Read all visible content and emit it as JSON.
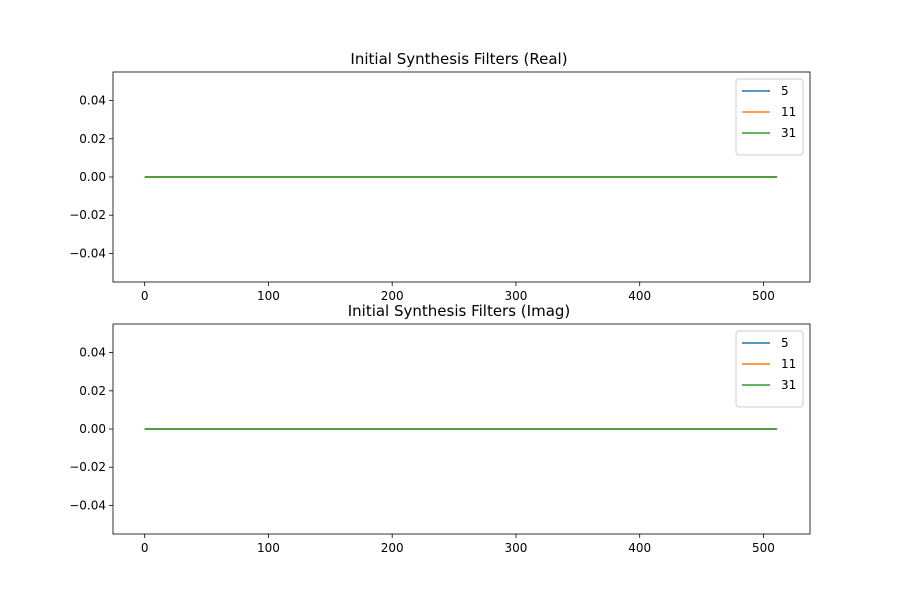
{
  "chart_data": [
    {
      "type": "line",
      "title": "Initial Synthesis Filters (Real)",
      "xlabel": "",
      "ylabel": "",
      "xlim": [
        -25.6,
        537.6
      ],
      "ylim": [
        -0.055,
        0.055
      ],
      "x_ticks": [
        "0",
        "100",
        "200",
        "300",
        "400",
        "500"
      ],
      "y_ticks": [
        "0.04",
        "0.02",
        "0.00",
        "−0.02",
        "−0.04"
      ],
      "grid": false,
      "legend_position": "top-right",
      "series": [
        {
          "name": "5",
          "color": "#1f77b4",
          "x": [
            0,
            511
          ],
          "y": [
            0.0,
            0.0
          ]
        },
        {
          "name": "11",
          "color": "#ff7f0e",
          "x": [
            0,
            511
          ],
          "y": [
            0.0,
            0.0
          ]
        },
        {
          "name": "31",
          "color": "#2ca02c",
          "x": [
            0,
            511
          ],
          "y": [
            0.0,
            0.0
          ]
        }
      ]
    },
    {
      "type": "line",
      "title": "Initial Synthesis Filters (Imag)",
      "xlabel": "",
      "ylabel": "",
      "xlim": [
        -25.6,
        537.6
      ],
      "ylim": [
        -0.055,
        0.055
      ],
      "x_ticks": [
        "0",
        "100",
        "200",
        "300",
        "400",
        "500"
      ],
      "y_ticks": [
        "0.04",
        "0.02",
        "0.00",
        "−0.02",
        "−0.04"
      ],
      "grid": false,
      "legend_position": "top-right",
      "series": [
        {
          "name": "5",
          "color": "#1f77b4",
          "x": [
            0,
            511
          ],
          "y": [
            0.0,
            0.0
          ]
        },
        {
          "name": "11",
          "color": "#ff7f0e",
          "x": [
            0,
            511
          ],
          "y": [
            0.0,
            0.0
          ]
        },
        {
          "name": "31",
          "color": "#2ca02c",
          "x": [
            0,
            511
          ],
          "y": [
            0.0,
            0.0
          ]
        }
      ]
    }
  ]
}
